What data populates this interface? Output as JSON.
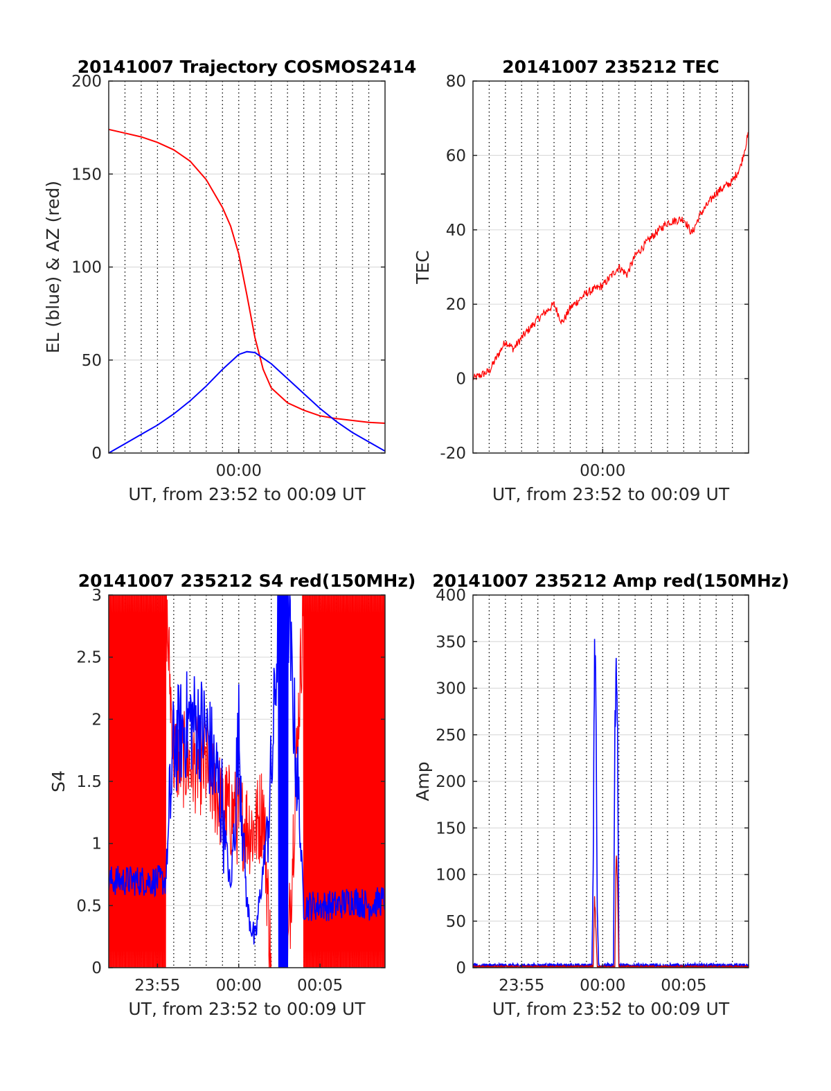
{
  "chart_data": [
    {
      "type": "line",
      "title": "20141007 Trajectory COSMOS2414",
      "xlabel": "UT, from 23:52 to 00:09 UT",
      "ylabel": "EL (blue) & AZ (red)",
      "xlim": [
        "23:52",
        "00:09"
      ],
      "ylim": [
        0,
        200
      ],
      "yticks": [
        0,
        50,
        100,
        150,
        200
      ],
      "xtick_labels": [
        {
          "t": "00:00",
          "label": "00:00"
        }
      ],
      "grid": true,
      "series": [
        {
          "color": "#ff0000",
          "x": [
            "23:52",
            "23:53",
            "23:54",
            "23:55",
            "23:56",
            "23:57",
            "23:58",
            "23:59",
            "23:59:30",
            "00:00",
            "00:00:30",
            "00:01",
            "00:01:30",
            "00:02",
            "00:03",
            "00:04",
            "00:05",
            "00:06",
            "00:07",
            "00:08",
            "00:09"
          ],
          "values": [
            174,
            172,
            170,
            167,
            163,
            157,
            147,
            132,
            122,
            107,
            85,
            62,
            45,
            35,
            27,
            23,
            20,
            18.5,
            17.5,
            16.5,
            16
          ]
        },
        {
          "color": "#0000ff",
          "x": [
            "23:52",
            "23:53",
            "23:54",
            "23:55",
            "23:56",
            "23:57",
            "23:58",
            "23:59",
            "00:00",
            "00:00:30",
            "00:01",
            "00:02",
            "00:03",
            "00:04",
            "00:05",
            "00:06",
            "00:07",
            "00:08",
            "00:09"
          ],
          "values": [
            0,
            5,
            10,
            15,
            21,
            28,
            36,
            45,
            53,
            54.5,
            54,
            48,
            40,
            32,
            24,
            17,
            11,
            6,
            1
          ]
        }
      ]
    },
    {
      "type": "line",
      "title": "20141007 235212 TEC",
      "xlabel": "UT, from 23:52 to 00:09 UT",
      "ylabel": "TEC",
      "xlim": [
        "23:52",
        "00:09"
      ],
      "ylim": [
        -20,
        80
      ],
      "yticks": [
        -20,
        0,
        20,
        40,
        60,
        80
      ],
      "xtick_labels": [
        {
          "t": "00:00",
          "label": "00:00"
        }
      ],
      "grid": true,
      "series": [
        {
          "color": "#ff0000",
          "x": [
            "23:52",
            "23:53",
            "23:54",
            "23:54:30",
            "23:55",
            "23:56",
            "23:57",
            "23:57:30",
            "23:58",
            "23:59",
            "00:00",
            "00:01",
            "00:01:30",
            "00:02",
            "00:03",
            "00:04",
            "00:05",
            "00:05:30",
            "00:06",
            "00:07",
            "00:08",
            "00:08:30",
            "00:09"
          ],
          "values": [
            0,
            2,
            10,
            8,
            11,
            16,
            20,
            15,
            19,
            23,
            25,
            30,
            28,
            33,
            38,
            42,
            43,
            39,
            44,
            50,
            53,
            57,
            66
          ]
        }
      ]
    },
    {
      "type": "line",
      "title": "20141007 235212 S4 red(150MHz)",
      "xlabel": "UT, from 23:52 to 00:09 UT",
      "ylabel": "S4",
      "xlim": [
        "23:52",
        "00:09"
      ],
      "ylim": [
        0,
        3
      ],
      "yticks": [
        0,
        0.5,
        1,
        1.5,
        2,
        2.5,
        3
      ],
      "xtick_labels": [
        {
          "t": "23:55",
          "label": "23:55"
        },
        {
          "t": "00:00",
          "label": "00:00"
        },
        {
          "t": "00:05",
          "label": "00:05"
        }
      ],
      "grid": true,
      "series": [
        {
          "color": "#ff0000",
          "note_values": "saturated 0 to 3 most of the window; about 1 to 1.5 near 00:00",
          "x": [
            "23:52",
            "23:55:30",
            "23:56",
            "23:58",
            "23:59",
            "00:00",
            "00:01",
            "00:01:30",
            "00:02",
            "00:03",
            "00:04",
            "00:09"
          ],
          "values": [
            3,
            3,
            1.7,
            1.6,
            1.3,
            1.2,
            1.1,
            1.3,
            0,
            0,
            3,
            3
          ]
        },
        {
          "color": "#0000ff",
          "x": [
            "23:52",
            "23:53",
            "23:54",
            "23:55",
            "23:55:30",
            "23:56",
            "23:57",
            "23:58",
            "23:59",
            "23:59:30",
            "00:00",
            "00:00:30",
            "00:01",
            "00:01:30",
            "00:02",
            "00:02:30",
            "00:03",
            "00:04",
            "00:05",
            "00:06",
            "00:07",
            "00:08",
            "00:09"
          ],
          "values": [
            0.7,
            0.7,
            0.7,
            0.7,
            0.7,
            1.8,
            2.0,
            1.9,
            1.3,
            0.6,
            1.9,
            0.5,
            0.2,
            0.8,
            1.5,
            3,
            3,
            0.5,
            0.5,
            0.5,
            0.55,
            0.5,
            0.55
          ]
        }
      ]
    },
    {
      "type": "line",
      "title": "20141007 235212 Amp red(150MHz)",
      "xlabel": "UT, from 23:52 to 00:09 UT",
      "ylabel": "Amp",
      "xlim": [
        "23:52",
        "00:09"
      ],
      "ylim": [
        0,
        400
      ],
      "yticks": [
        0,
        50,
        100,
        150,
        200,
        250,
        300,
        350,
        400
      ],
      "xtick_labels": [
        {
          "t": "23:55",
          "label": "23:55"
        },
        {
          "t": "00:00",
          "label": "00:00"
        },
        {
          "t": "00:05",
          "label": "00:05"
        }
      ],
      "grid": true,
      "series": [
        {
          "color": "#0000ff",
          "x": [
            "23:52",
            "23:59:20",
            "23:59:25",
            "23:59:30",
            "23:59:35",
            "23:59:40",
            "23:59:45",
            "00:00:40",
            "00:00:45",
            "00:00:50",
            "00:00:55",
            "00:01:00",
            "00:09"
          ],
          "values": [
            2,
            2,
            100,
            360,
            300,
            60,
            2,
            2,
            250,
            318,
            270,
            2,
            2
          ]
        },
        {
          "color": "#cc0000",
          "x": [
            "23:52",
            "23:59:25",
            "23:59:30",
            "23:59:35",
            "23:59:40",
            "00:00:45",
            "00:00:50",
            "00:00:55",
            "00:01:00",
            "00:09"
          ],
          "values": [
            1,
            1,
            75,
            40,
            1,
            1,
            125,
            90,
            1,
            1
          ]
        }
      ]
    }
  ]
}
